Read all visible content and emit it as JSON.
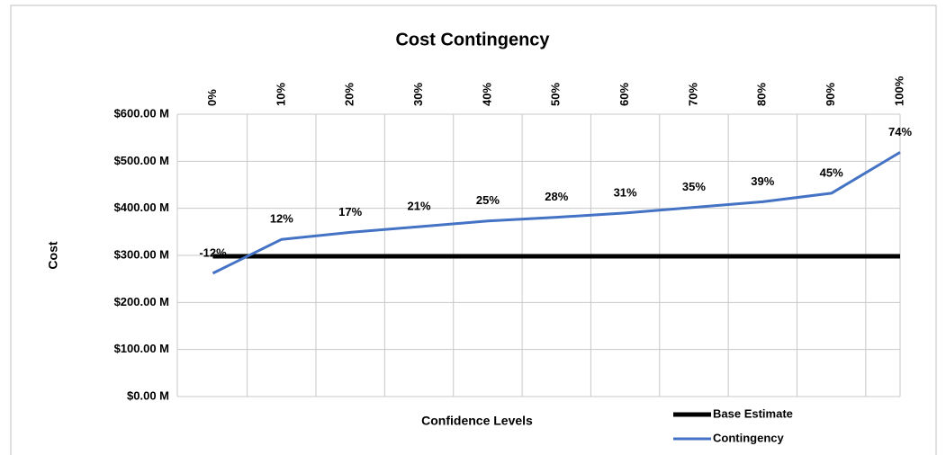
{
  "chart_data": {
    "type": "line",
    "title": "Cost Contingency",
    "x_label": "Confidence Levels",
    "y_label": "Cost",
    "categories": [
      "0%",
      "10%",
      "20%",
      "30%",
      "40%",
      "50%",
      "60%",
      "70%",
      "80%",
      "90%",
      "100%"
    ],
    "series": [
      {
        "name": "Base Estimate",
        "color": "#000000",
        "values": [
          298,
          298,
          298,
          298,
          298,
          298,
          298,
          298,
          298,
          298,
          298
        ]
      },
      {
        "name": "Contingency",
        "color": "#4472c4",
        "values": [
          262,
          334,
          349,
          361,
          373,
          381,
          390,
          402,
          414,
          432,
          519
        ],
        "annotations": [
          "-12%",
          "12%",
          "17%",
          "21%",
          "25%",
          "28%",
          "31%",
          "35%",
          "39%",
          "45%",
          "74%"
        ]
      }
    ],
    "ylim": [
      0,
      600
    ],
    "yticks": [
      {
        "value": 0,
        "label": "$0.00 M"
      },
      {
        "value": 100,
        "label": "$100.00 M"
      },
      {
        "value": 200,
        "label": "$200.00 M"
      },
      {
        "value": 300,
        "label": "$300.00 M"
      },
      {
        "value": 400,
        "label": "$400.00 M"
      },
      {
        "value": 500,
        "label": "$500.00 M"
      },
      {
        "value": 600,
        "label": "$600.00 M"
      }
    ],
    "grid": true,
    "legend": "bottom-right"
  }
}
